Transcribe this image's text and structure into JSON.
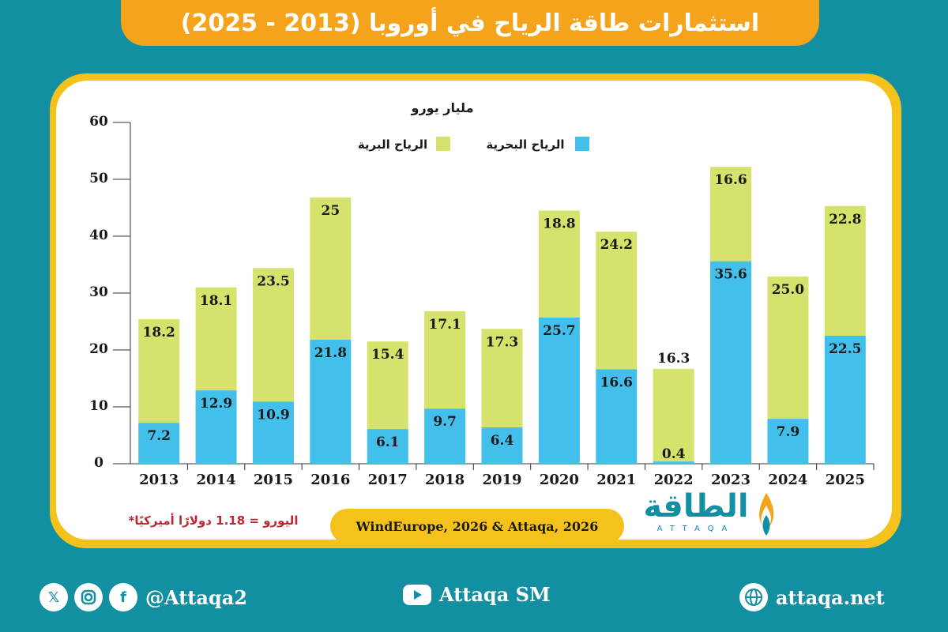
{
  "header": {
    "title": "استثمارات طاقة الرياح في أوروبا (2013 - 2025)"
  },
  "chart_data": {
    "type": "bar",
    "stacked": true,
    "ylabel": "مليار يورو",
    "ylim": [
      0,
      60
    ],
    "yticks": [
      0,
      10,
      20,
      30,
      40,
      50,
      60
    ],
    "grid": false,
    "legend_position": "top-center",
    "categories": [
      "2013",
      "2014",
      "2015",
      "2016",
      "2017",
      "2018",
      "2019",
      "2020",
      "2021",
      "2022",
      "2023",
      "2024",
      "2025"
    ],
    "series": [
      {
        "name": "الرياح البحرية",
        "color": "#43bfec",
        "values": [
          7.2,
          12.9,
          10.9,
          21.8,
          6.1,
          9.7,
          6.4,
          25.7,
          16.6,
          0.4,
          35.6,
          7.9,
          22.5
        ],
        "labels": [
          "7.2",
          "12.9",
          "10.9",
          "21.8",
          "6.1",
          "9.7",
          "6.4",
          "25.7",
          "16.6",
          "0.4",
          "35.6",
          "7.9",
          "22.5"
        ]
      },
      {
        "name": "الرياح البرية",
        "color": "#d5e26b",
        "values": [
          18.2,
          18.1,
          23.5,
          25,
          15.4,
          17.1,
          17.3,
          18.8,
          24.2,
          16.3,
          16.6,
          25.0,
          22.8
        ],
        "labels": [
          "18.2",
          "18.1",
          "23.5",
          "25",
          "15.4",
          "17.1",
          "17.3",
          "18.8",
          "24.2",
          "16.3",
          "16.6",
          "25.0",
          "22.8"
        ]
      }
    ]
  },
  "source": "WindEurope, 2026 & Attaqa, 2026",
  "footnote": "*اليورو = 1.18 دولارًا أميركيًا",
  "logo": {
    "text": "الطاقة",
    "sub": "ATTAQA"
  },
  "footer": {
    "social_handle": "@Attaqa2",
    "youtube": "Attaqa SM",
    "website": "attaqa.net"
  },
  "colors": {
    "teal": "#128fa0",
    "orange": "#f6a31c",
    "yellow": "#f5c11b",
    "blue": "#43bfec",
    "green": "#d5e26b"
  }
}
